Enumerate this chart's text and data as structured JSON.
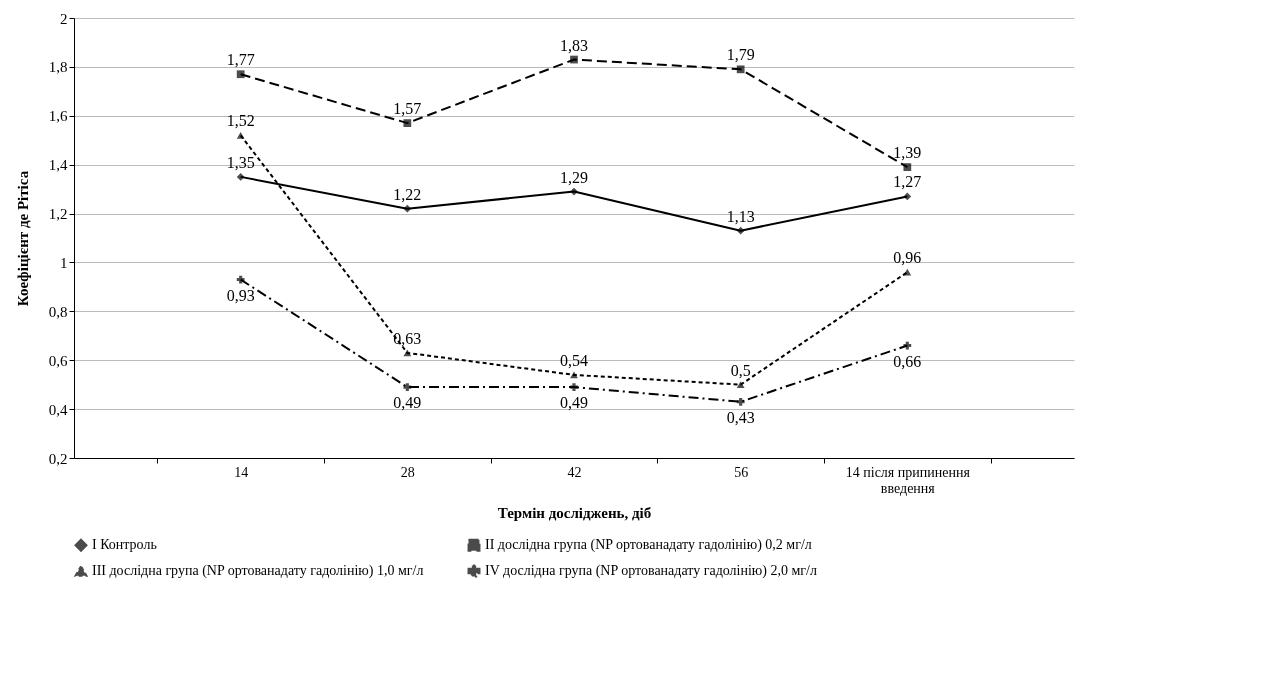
{
  "chart_data": {
    "type": "line",
    "xlabel": "Термін досліджень, діб",
    "ylabel": "Коефіцієнт де Рітіса",
    "categories": [
      "14",
      "28",
      "42",
      "56",
      "14 після припинення введення"
    ],
    "ylim": [
      0.2,
      2
    ],
    "yticks": [
      {
        "value": 0.2,
        "label": "0,2"
      },
      {
        "value": 0.4,
        "label": "0,4"
      },
      {
        "value": 0.6,
        "label": "0,6"
      },
      {
        "value": 0.8,
        "label": "0,8"
      },
      {
        "value": 1,
        "label": "1"
      },
      {
        "value": 1.2,
        "label": "1,2"
      },
      {
        "value": 1.4,
        "label": "1,4"
      },
      {
        "value": 1.6,
        "label": "1,6"
      },
      {
        "value": 1.8,
        "label": "1,8"
      },
      {
        "value": 2,
        "label": "2"
      }
    ],
    "grid": "y",
    "legend": "bottom",
    "series": [
      {
        "name": "I Контроль",
        "color": "#000000",
        "marker": "diamond",
        "line_style": "solid",
        "values": [
          1.35,
          1.22,
          1.29,
          1.13,
          1.27
        ],
        "value_labels": [
          "1,35",
          "1,22",
          "1,29",
          "1,13",
          "1,27"
        ]
      },
      {
        "name": "II дослідна група (NP ортованадату гадолінію) 0,2 мг/л",
        "color": "#000000",
        "marker": "square",
        "line_style": "dashed",
        "values": [
          1.77,
          1.57,
          1.83,
          1.79,
          1.39
        ],
        "value_labels": [
          "1,77",
          "1,57",
          "1,83",
          "1,79",
          "1,39"
        ]
      },
      {
        "name": "III дослідна група (NP ортованадату гадолінію) 1,0 мг/л",
        "color": "#000000",
        "marker": "triangle",
        "line_style": "dotted",
        "values": [
          1.52,
          0.63,
          0.54,
          0.5,
          0.96
        ],
        "value_labels": [
          "1,52",
          "0,63",
          "0,54",
          "0,5",
          "0,96"
        ]
      },
      {
        "name": "IV дослідна група (NP ортованадату гадолінію) 2,0 мг/л",
        "color": "#000000",
        "marker": "cross",
        "line_style": "dashed",
        "values": [
          0.93,
          0.49,
          0.49,
          0.43,
          0.66
        ],
        "value_labels": [
          "0,93",
          "0,49",
          "0,49",
          "0,43",
          "0,66"
        ]
      }
    ]
  }
}
